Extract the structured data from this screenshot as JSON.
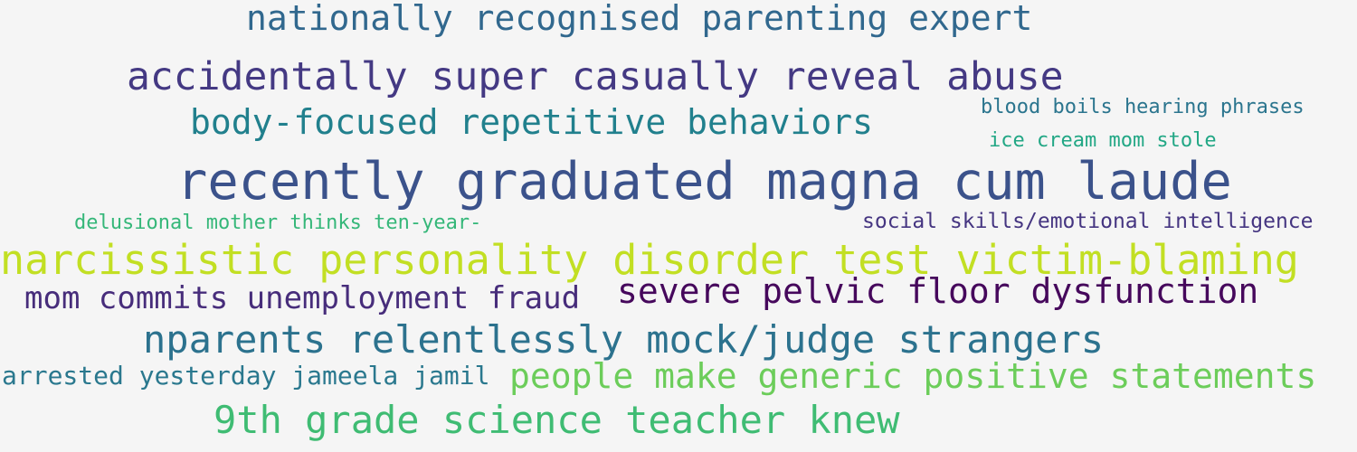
{
  "background_color": "#f5f5f5",
  "phrases": [
    {
      "text": "nationally recognised parenting expert",
      "color": "#31688e"
    },
    {
      "text": "accidentally super casually reveal abuse",
      "color": "#443983"
    },
    {
      "text": "body-focused repetitive behaviors",
      "color": "#21808d"
    },
    {
      "text": "blood boils hearing phrases",
      "color": "#2b758e"
    },
    {
      "text": "ice cream mom stole",
      "color": "#22a785"
    },
    {
      "text": "recently graduated magna cum laude",
      "color": "#3b528b"
    },
    {
      "text": "delusional mother thinks ten-year-",
      "color": "#35b779"
    },
    {
      "text": "social skills/emotional intelligence",
      "color": "#453581"
    },
    {
      "text": "narcissistic personality disorder test victim-blaming",
      "color": "#c2df23"
    },
    {
      "text": "mom commits unemployment fraud",
      "color": "#472d7b"
    },
    {
      "text": "severe pelvic floor dysfunction",
      "color": "#46085c"
    },
    {
      "text": "nparents relentlessly mock/judge strangers",
      "color": "#2c728e"
    },
    {
      "text": "arrested yesterday jameela jamil",
      "color": "#2a788e"
    },
    {
      "text": "people make generic positive statements",
      "color": "#6ccd5a"
    },
    {
      "text": "9th grade science teacher knew",
      "color": "#3fbc73"
    }
  ]
}
